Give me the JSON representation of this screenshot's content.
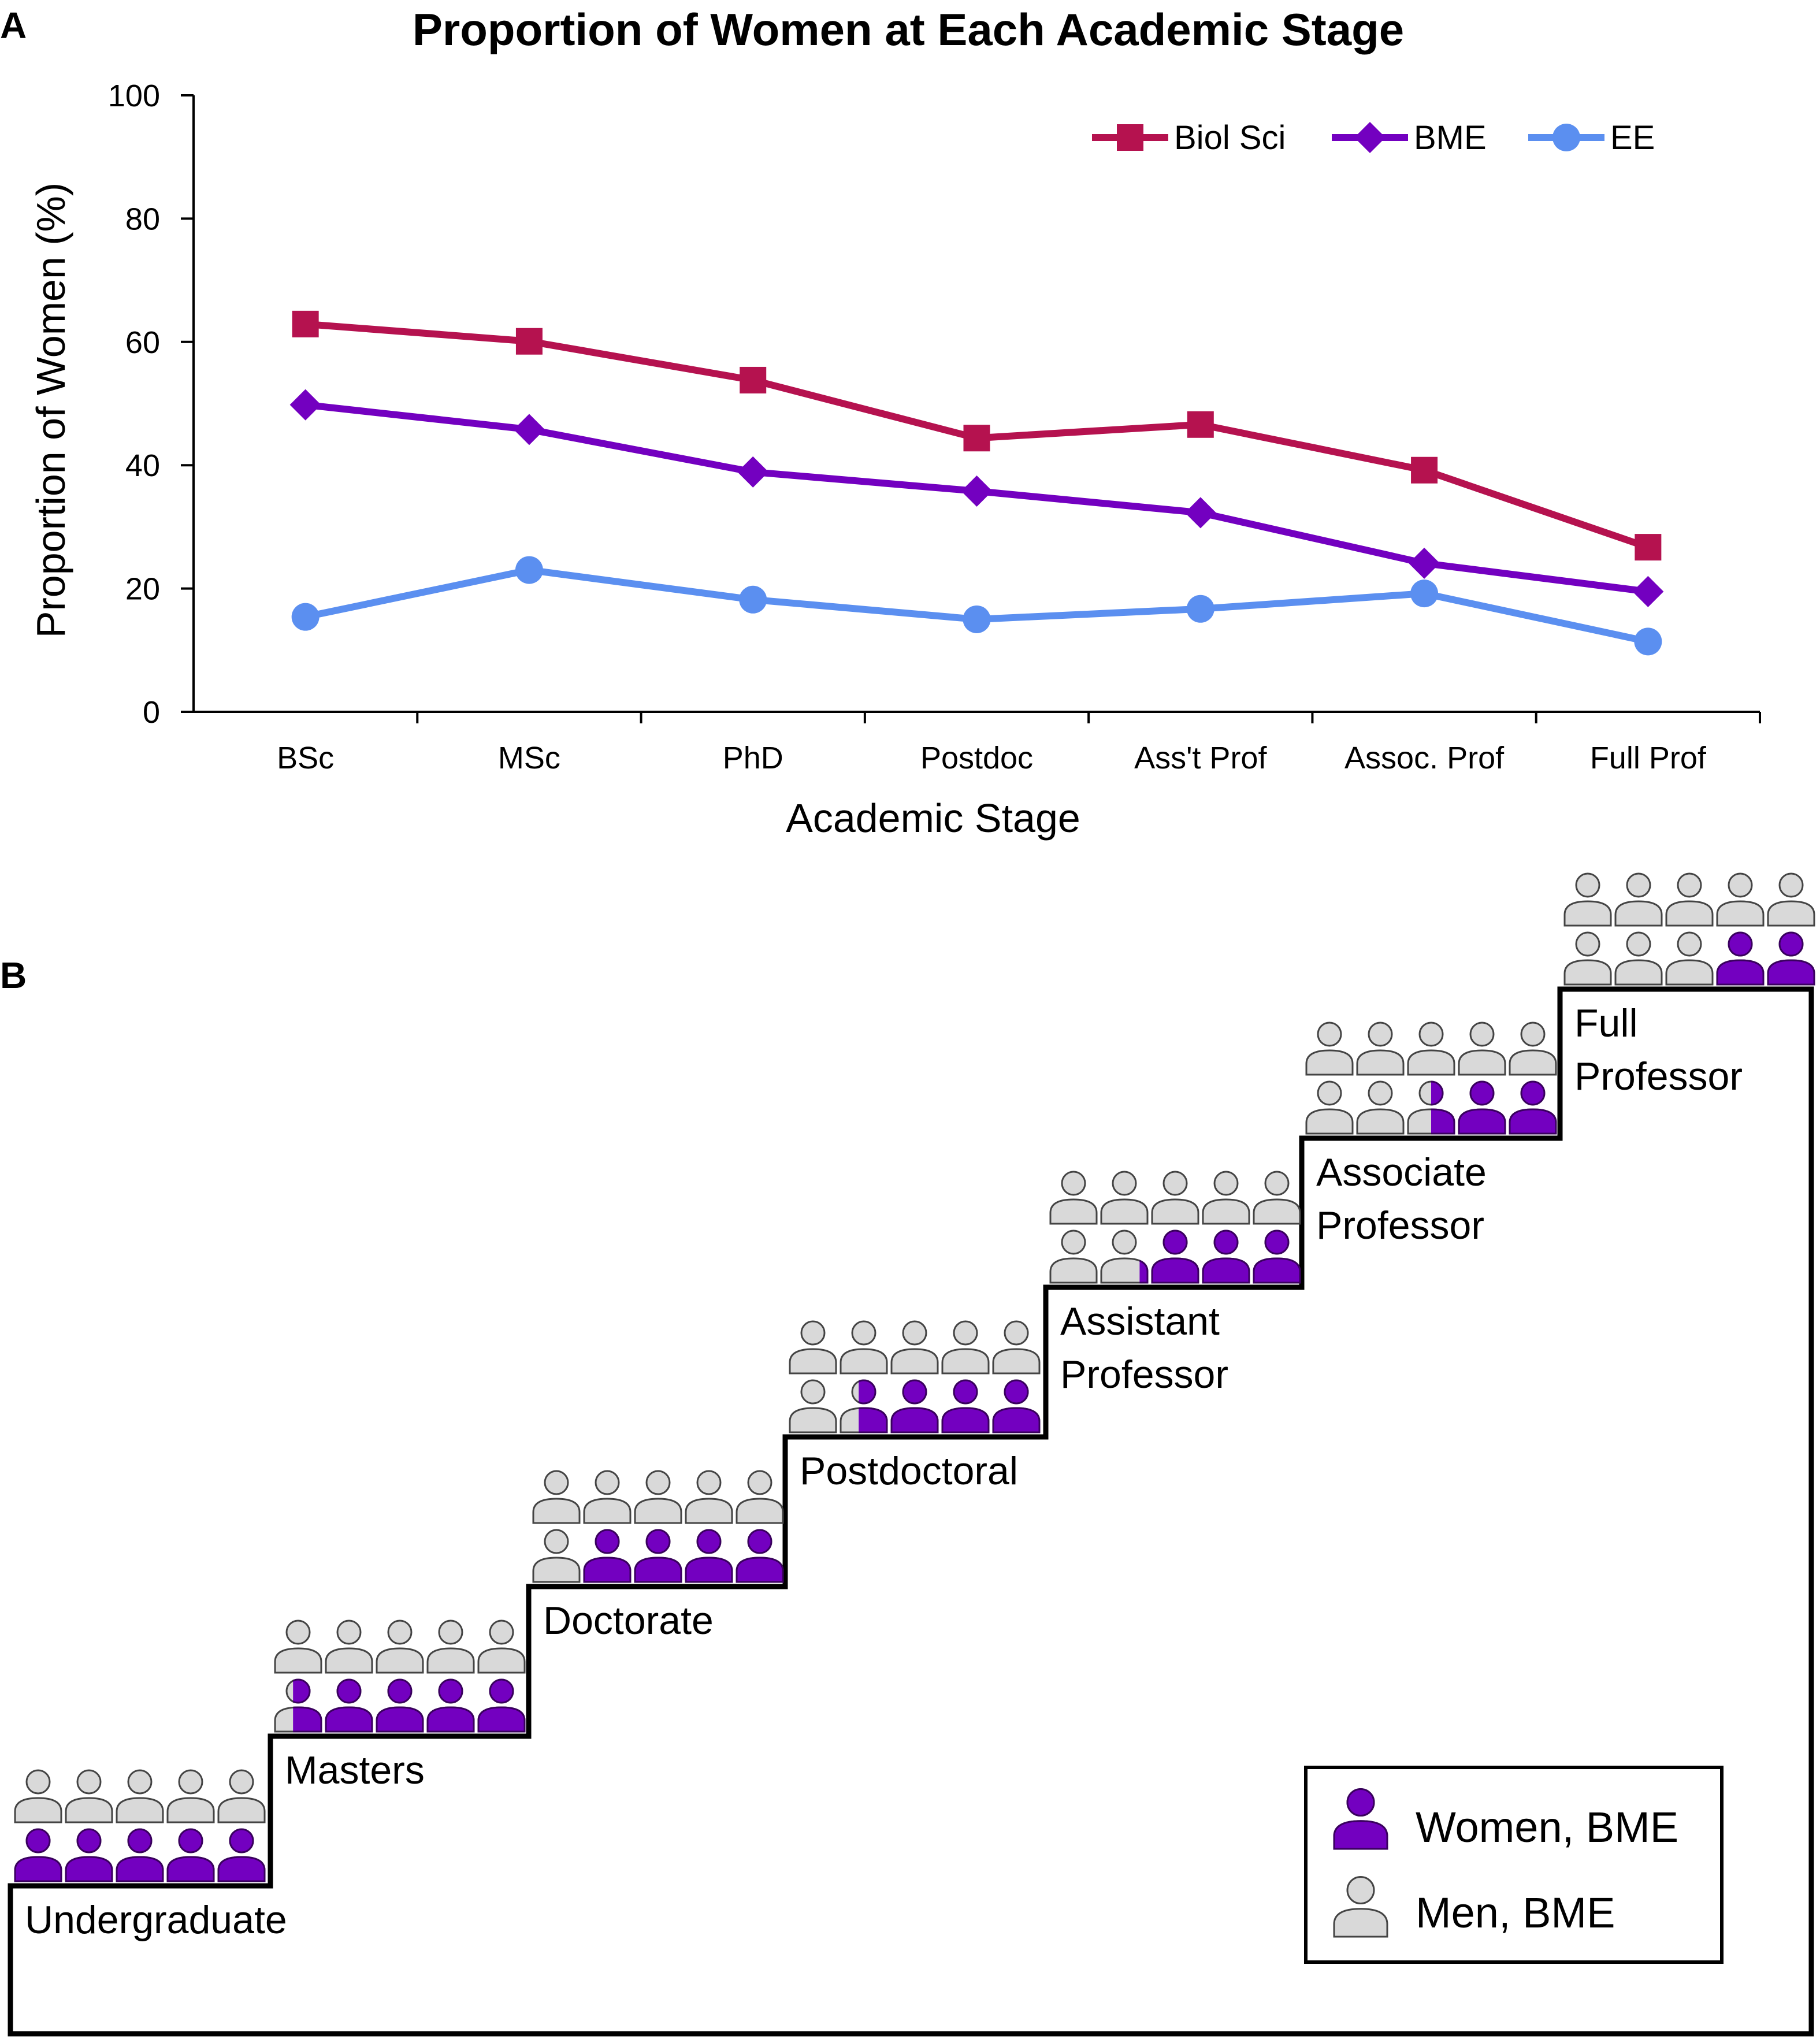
{
  "panel_a": {
    "letter": "A",
    "chart_data": {
      "type": "line",
      "title": "Proportion of Women at Each Academic Stage",
      "xlabel": "Academic Stage",
      "ylabel": "Proportion of Women (%)",
      "ylim": [
        0,
        100
      ],
      "yticks": [
        "0",
        "20",
        "40",
        "60",
        "80",
        "100"
      ],
      "categories": [
        "BSc",
        "MSc",
        "PhD",
        "Postdoc",
        "Ass't Prof",
        "Assoc. Prof",
        "Full Prof"
      ],
      "legend_position": "top-right",
      "series": [
        {
          "name": "Biol Sci",
          "color": "#b5124f",
          "marker": "square",
          "values": [
            62.9,
            60.1,
            53.8,
            44.4,
            46.6,
            39.2,
            26.7
          ]
        },
        {
          "name": "BME",
          "color": "#7300c0",
          "marker": "diamond",
          "values": [
            49.8,
            45.8,
            38.9,
            35.8,
            32.3,
            24.1,
            19.5
          ]
        },
        {
          "name": "EE",
          "color": "#5b8ff0",
          "marker": "circle",
          "values": [
            15.4,
            23.0,
            18.2,
            15.0,
            16.7,
            19.2,
            11.4
          ]
        }
      ]
    }
  },
  "panel_b": {
    "letter": "B",
    "stages": [
      {
        "label_lines": [
          "Undergraduate"
        ],
        "women_fraction": 0.5
      },
      {
        "label_lines": [
          "Masters"
        ],
        "women_fraction": 0.46
      },
      {
        "label_lines": [
          "Doctorate"
        ],
        "women_fraction": 0.4
      },
      {
        "label_lines": [
          "Postdoctoral"
        ],
        "women_fraction": 0.36
      },
      {
        "label_lines": [
          "Assistant",
          "Professor"
        ],
        "women_fraction": 0.32
      },
      {
        "label_lines": [
          "Associate",
          "Professor"
        ],
        "women_fraction": 0.25
      },
      {
        "label_lines": [
          "Full",
          "Professor"
        ],
        "women_fraction": 0.2
      }
    ],
    "legend": {
      "women": "Women, BME",
      "men": "Men, BME",
      "women_color": "#7300c0",
      "men_color": "#d9d9d9"
    }
  }
}
